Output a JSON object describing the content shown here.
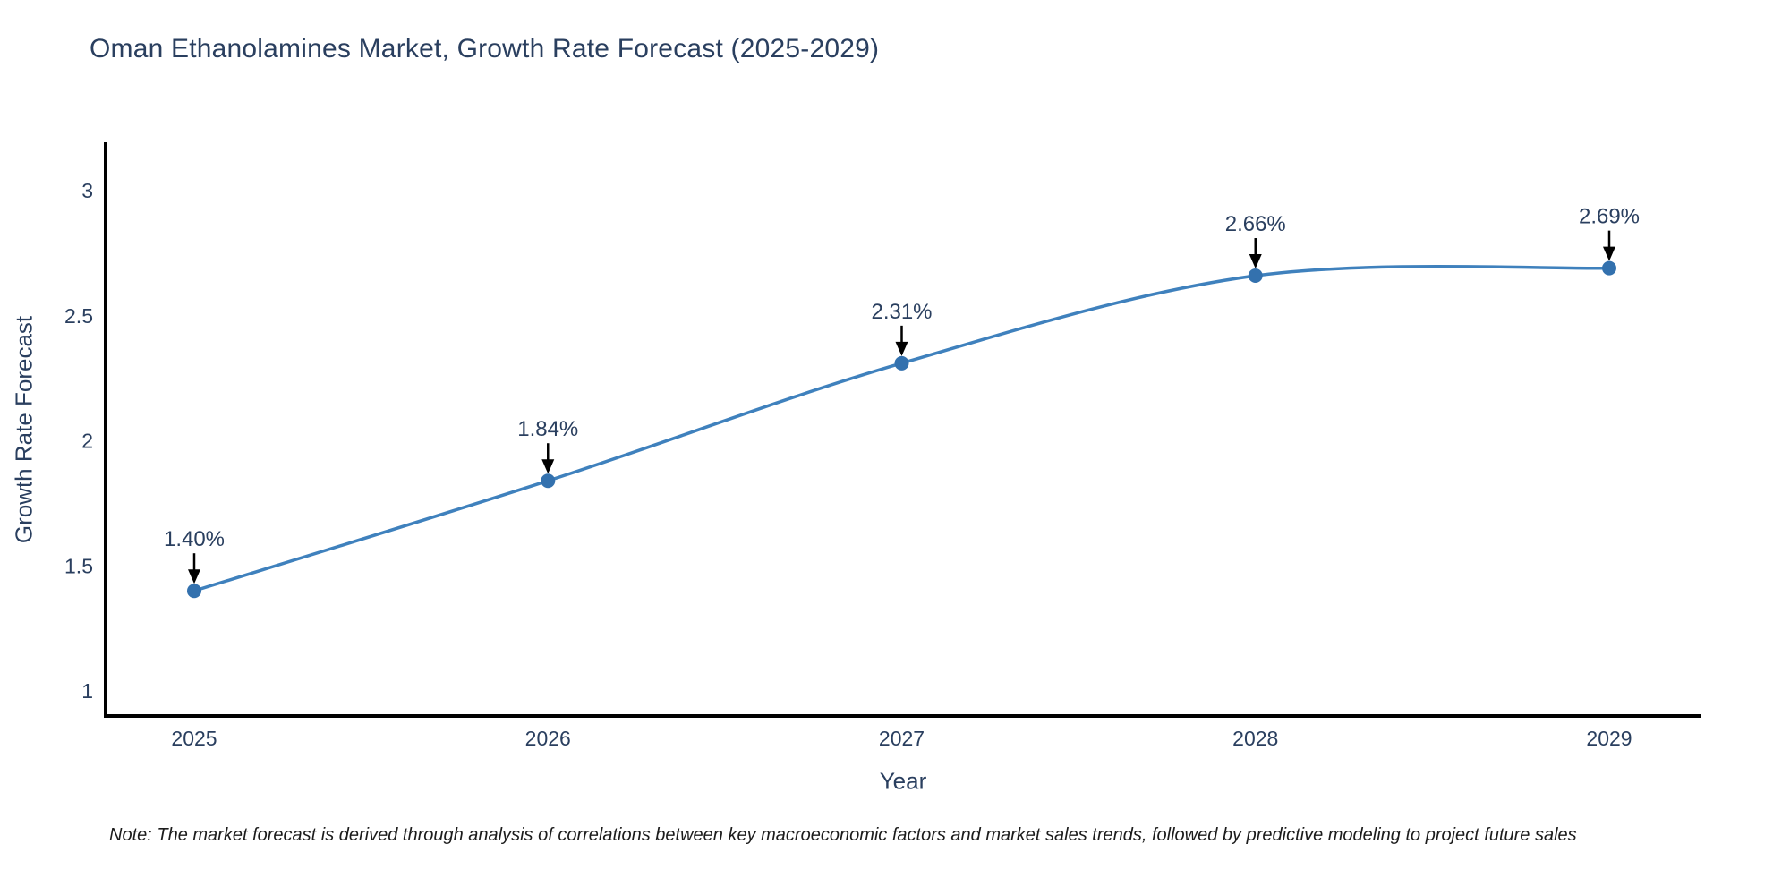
{
  "chart_data": {
    "type": "line",
    "title": "Oman Ethanolamines Market, Growth Rate Forecast (2025-2029)",
    "xlabel": "Year",
    "ylabel": "Growth Rate Forecast",
    "x": [
      2025,
      2026,
      2027,
      2028,
      2029
    ],
    "x_tick_labels": [
      "2025",
      "2026",
      "2027",
      "2028",
      "2029"
    ],
    "series": [
      {
        "name": "Growth Rate Forecast",
        "values": [
          1.4,
          1.84,
          2.31,
          2.66,
          2.69
        ],
        "point_labels": [
          "1.40%",
          "1.84%",
          "2.31%",
          "2.66%",
          "2.69%"
        ]
      }
    ],
    "y_ticks": [
      1,
      1.5,
      2,
      2.5,
      3
    ],
    "y_tick_labels": [
      "1",
      "1.5",
      "2",
      "2.5",
      "3"
    ],
    "ylim": [
      0.9,
      3.2
    ],
    "grid": false,
    "legend_position": "none",
    "line_shape": "spline",
    "annotation_style": "arrow-down-to-point",
    "colors": {
      "line": "#3f81bd",
      "marker": "#3371ae",
      "text": "#2a3f5f",
      "axis": "#000000",
      "annotation_arrow": "#000000"
    }
  },
  "note": "Note: The market forecast is derived through analysis of correlations between key macroeconomic factors and market sales trends, followed by predictive modeling to project future sales"
}
